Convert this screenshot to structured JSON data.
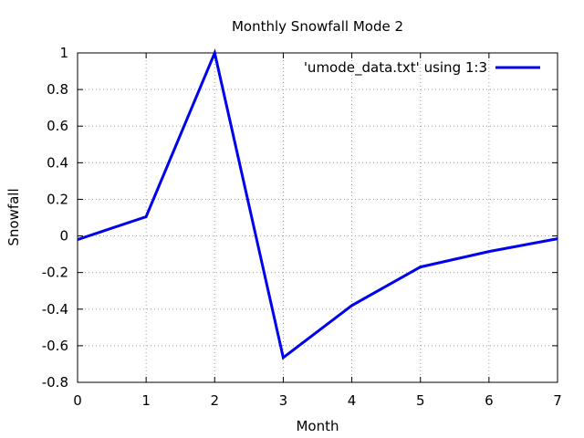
{
  "chart_data": {
    "type": "line",
    "title": "Monthly Snowfall Mode 2",
    "xlabel": "Month",
    "ylabel": "Snowfall",
    "xlim": [
      0,
      7
    ],
    "ylim": [
      -0.8,
      1
    ],
    "xticks": [
      "0",
      "1",
      "2",
      "3",
      "4",
      "5",
      "6",
      "7"
    ],
    "yticks": [
      "-0.8",
      "-0.6",
      "-0.4",
      "-0.2",
      "0",
      "0.2",
      "0.4",
      "0.6",
      "0.8",
      "1"
    ],
    "grid": true,
    "legend_position": "top-right",
    "series": [
      {
        "name": "'umode_data.txt' using 1:3",
        "color": "#0000ee",
        "x": [
          0,
          1,
          2,
          3,
          4,
          5,
          6,
          7
        ],
        "y": [
          -0.02,
          0.105,
          1.0,
          -0.665,
          -0.38,
          -0.17,
          -0.085,
          -0.015
        ]
      }
    ]
  }
}
